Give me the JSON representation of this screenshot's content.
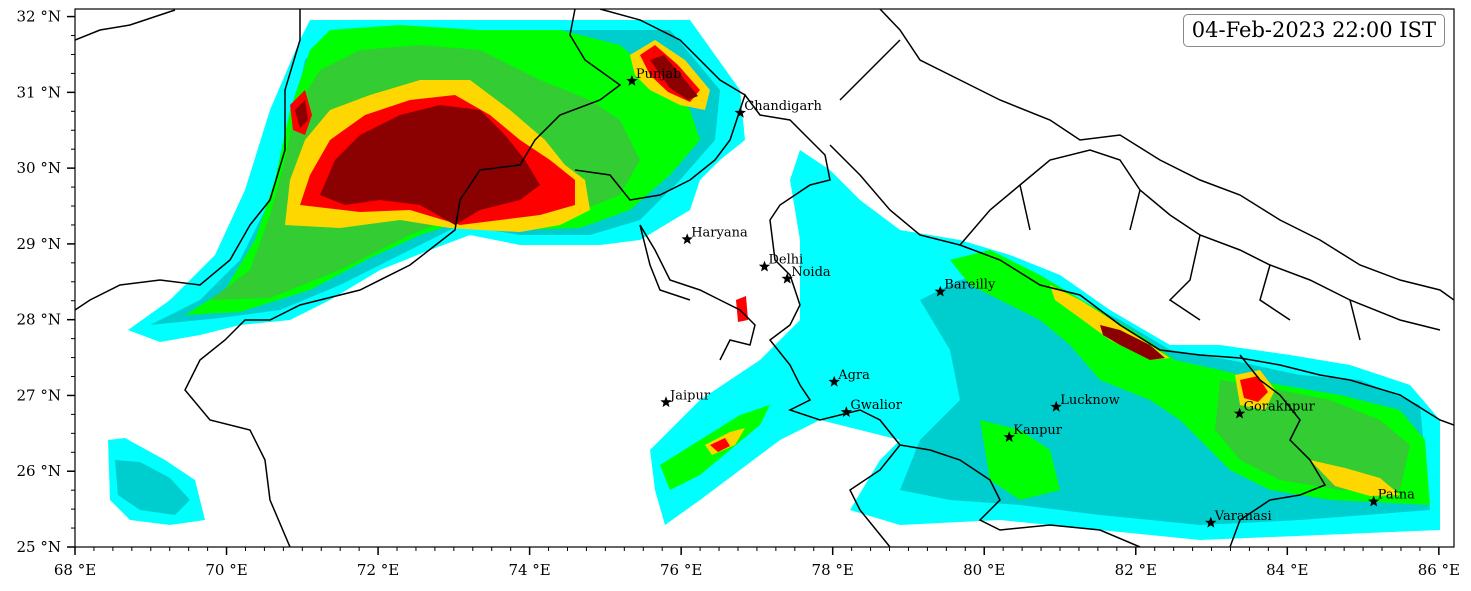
{
  "map": {
    "timestamp": "04-Feb-2023 22:00 IST",
    "lon_range": [
      68,
      86.2
    ],
    "lat_range": [
      25,
      32.1
    ],
    "x_ticks": [
      {
        "value": 68,
        "label": "68 °E"
      },
      {
        "value": 70,
        "label": "70 °E"
      },
      {
        "value": 72,
        "label": "72 °E"
      },
      {
        "value": 74,
        "label": "74 °E"
      },
      {
        "value": 76,
        "label": "76 °E"
      },
      {
        "value": 78,
        "label": "78 °E"
      },
      {
        "value": 80,
        "label": "80 °E"
      },
      {
        "value": 82,
        "label": "82 °E"
      },
      {
        "value": 84,
        "label": "84 °E"
      },
      {
        "value": 86,
        "label": "86 °E"
      }
    ],
    "y_ticks": [
      {
        "value": 25,
        "label": "25 °N"
      },
      {
        "value": 26,
        "label": "26 °N"
      },
      {
        "value": 27,
        "label": "27 °N"
      },
      {
        "value": 28,
        "label": "28 °N"
      },
      {
        "value": 29,
        "label": "29 °N"
      },
      {
        "value": 30,
        "label": "30 °N"
      },
      {
        "value": 31,
        "label": "31 °N"
      },
      {
        "value": 32,
        "label": "32 °N"
      }
    ],
    "fill_colors": [
      "#00ffff",
      "#00cdcd",
      "#00ff00",
      "#33cc33",
      "#ffd700",
      "#ff0000",
      "#8b0000"
    ],
    "cities": [
      {
        "name": "Punjab",
        "lon": 75.35,
        "lat": 31.15
      },
      {
        "name": "Chandigarh",
        "lon": 76.78,
        "lat": 30.73
      },
      {
        "name": "Haryana",
        "lon": 76.08,
        "lat": 29.06
      },
      {
        "name": "Delhi",
        "lon": 77.1,
        "lat": 28.7
      },
      {
        "name": "Noida",
        "lon": 77.4,
        "lat": 28.54
      },
      {
        "name": "Bareilly",
        "lon": 79.42,
        "lat": 28.37
      },
      {
        "name": "Jaipur",
        "lon": 75.8,
        "lat": 26.91
      },
      {
        "name": "Agra",
        "lon": 78.02,
        "lat": 27.18
      },
      {
        "name": "Gwalior",
        "lon": 78.18,
        "lat": 26.78
      },
      {
        "name": "Lucknow",
        "lon": 80.95,
        "lat": 26.85
      },
      {
        "name": "Kanpur",
        "lon": 80.33,
        "lat": 26.45
      },
      {
        "name": "Gorakhpur",
        "lon": 83.37,
        "lat": 26.76
      },
      {
        "name": "Varanasi",
        "lon": 82.99,
        "lat": 25.32
      },
      {
        "name": "Patna",
        "lon": 85.14,
        "lat": 25.6
      }
    ]
  }
}
